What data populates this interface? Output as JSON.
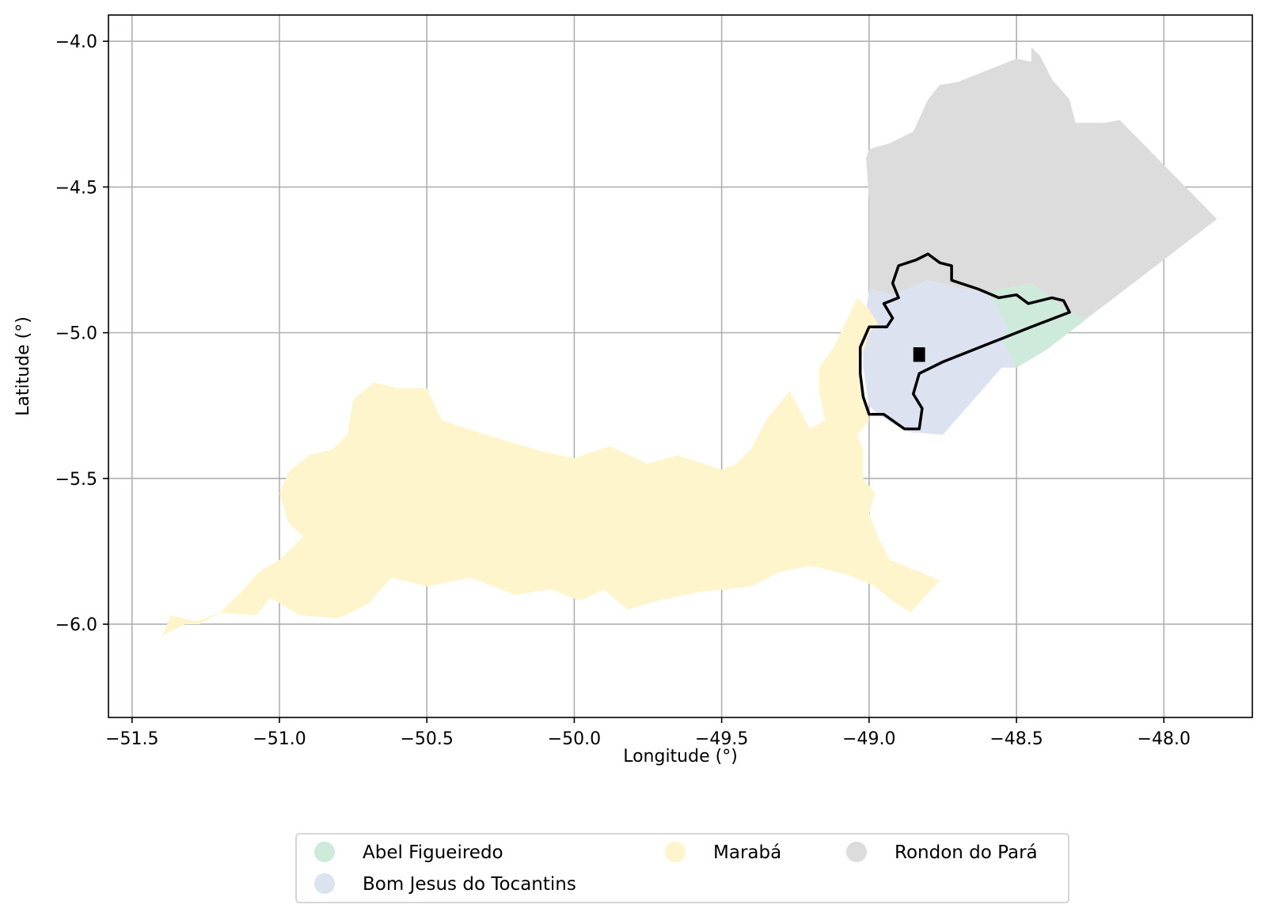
{
  "chart_data": {
    "type": "map",
    "xlabel": "Longitude (°)",
    "ylabel": "Latitude (°)",
    "xlim": [
      -51.58,
      -47.7
    ],
    "ylim": [
      -6.32,
      -3.91
    ],
    "xticks": [
      -51.5,
      -51.0,
      -50.5,
      -50.0,
      -49.5,
      -49.0,
      -48.5,
      -48.0
    ],
    "yticks": [
      -4.0,
      -4.5,
      -5.0,
      -5.5,
      -6.0
    ],
    "xtick_labels": [
      "−51.5",
      "−51.0",
      "−50.5",
      "−50.0",
      "−49.5",
      "−49.0",
      "−48.5",
      "−48.0"
    ],
    "ytick_labels": [
      "−4.0",
      "−4.5",
      "−5.0",
      "−5.5",
      "−6.0"
    ],
    "grid": true,
    "legend_position": "bottom-center",
    "regions": [
      {
        "name": "Abel Figueiredo",
        "color": "#cdeadb",
        "polygon": [
          [
            -48.6,
            -4.86
          ],
          [
            -48.45,
            -4.83
          ],
          [
            -48.33,
            -4.92
          ],
          [
            -48.27,
            -4.95
          ],
          [
            -48.22,
            -4.92
          ],
          [
            -48.4,
            -5.06
          ],
          [
            -48.5,
            -5.12
          ],
          [
            -48.55,
            -5.02
          ],
          [
            -48.53,
            -4.98
          ]
        ]
      },
      {
        "name": "Bom Jesus do Tocantins",
        "color": "#dde2f0",
        "polygon": [
          [
            -49.0,
            -4.85
          ],
          [
            -48.92,
            -4.87
          ],
          [
            -48.8,
            -4.82
          ],
          [
            -48.68,
            -4.85
          ],
          [
            -48.6,
            -4.86
          ],
          [
            -48.53,
            -4.98
          ],
          [
            -48.55,
            -5.02
          ],
          [
            -48.5,
            -5.12
          ],
          [
            -48.55,
            -5.12
          ],
          [
            -48.75,
            -5.35
          ],
          [
            -48.87,
            -5.34
          ],
          [
            -48.97,
            -5.28
          ],
          [
            -49.0,
            -5.25
          ],
          [
            -49.02,
            -5.12
          ],
          [
            -49.02,
            -5.0
          ]
        ]
      },
      {
        "name": "Marabá",
        "color": "#fff5cc",
        "polygon": [
          [
            -51.4,
            -6.05
          ],
          [
            -51.37,
            -5.97
          ],
          [
            -51.28,
            -5.99
          ],
          [
            -51.2,
            -5.96
          ],
          [
            -51.08,
            -5.97
          ],
          [
            -51.03,
            -5.91
          ],
          [
            -50.93,
            -5.97
          ],
          [
            -50.8,
            -5.98
          ],
          [
            -50.7,
            -5.93
          ],
          [
            -50.62,
            -5.84
          ],
          [
            -50.5,
            -5.87
          ],
          [
            -50.35,
            -5.84
          ],
          [
            -50.2,
            -5.9
          ],
          [
            -50.08,
            -5.88
          ],
          [
            -49.98,
            -5.92
          ],
          [
            -49.9,
            -5.88
          ],
          [
            -49.82,
            -5.95
          ],
          [
            -49.72,
            -5.92
          ],
          [
            -49.58,
            -5.89
          ],
          [
            -49.48,
            -5.88
          ],
          [
            -49.4,
            -5.87
          ],
          [
            -49.3,
            -5.82
          ],
          [
            -49.2,
            -5.8
          ],
          [
            -49.07,
            -5.83
          ],
          [
            -48.98,
            -5.87
          ],
          [
            -48.92,
            -5.92
          ],
          [
            -48.86,
            -5.96
          ],
          [
            -48.76,
            -5.85
          ],
          [
            -48.83,
            -5.82
          ],
          [
            -48.93,
            -5.78
          ],
          [
            -48.97,
            -5.7
          ],
          [
            -49.0,
            -5.62
          ],
          [
            -48.98,
            -5.55
          ],
          [
            -49.02,
            -5.5
          ],
          [
            -49.02,
            -5.4
          ],
          [
            -49.04,
            -5.35
          ],
          [
            -49.0,
            -5.3
          ],
          [
            -49.02,
            -5.2
          ],
          [
            -49.03,
            -5.1
          ],
          [
            -49.0,
            -5.0
          ],
          [
            -48.97,
            -4.97
          ],
          [
            -49.0,
            -4.92
          ],
          [
            -49.04,
            -4.88
          ],
          [
            -49.12,
            -5.05
          ],
          [
            -49.17,
            -5.12
          ],
          [
            -49.17,
            -5.2
          ],
          [
            -49.15,
            -5.3
          ],
          [
            -49.2,
            -5.33
          ],
          [
            -49.27,
            -5.2
          ],
          [
            -49.35,
            -5.3
          ],
          [
            -49.4,
            -5.4
          ],
          [
            -49.45,
            -5.45
          ],
          [
            -49.5,
            -5.47
          ],
          [
            -49.65,
            -5.42
          ],
          [
            -49.75,
            -5.45
          ],
          [
            -49.88,
            -5.39
          ],
          [
            -50.0,
            -5.43
          ],
          [
            -50.1,
            -5.41
          ],
          [
            -50.2,
            -5.38
          ],
          [
            -50.3,
            -5.35
          ],
          [
            -50.45,
            -5.3
          ],
          [
            -50.5,
            -5.19
          ],
          [
            -50.6,
            -5.19
          ],
          [
            -50.68,
            -5.17
          ],
          [
            -50.75,
            -5.23
          ],
          [
            -50.77,
            -5.35
          ],
          [
            -50.82,
            -5.4
          ],
          [
            -50.9,
            -5.42
          ],
          [
            -50.97,
            -5.48
          ],
          [
            -51.0,
            -5.55
          ],
          [
            -50.97,
            -5.65
          ],
          [
            -50.92,
            -5.7
          ],
          [
            -51.0,
            -5.78
          ],
          [
            -51.07,
            -5.82
          ],
          [
            -51.12,
            -5.88
          ],
          [
            -51.2,
            -5.96
          ],
          [
            -51.27,
            -6.0
          ],
          [
            -51.32,
            -6.0
          ],
          [
            -51.4,
            -6.04
          ]
        ]
      },
      {
        "name": "Rondon do Pará",
        "color": "#dcdcdc",
        "polygon": [
          [
            -49.0,
            -4.37
          ],
          [
            -48.93,
            -4.35
          ],
          [
            -48.85,
            -4.31
          ],
          [
            -48.8,
            -4.2
          ],
          [
            -48.76,
            -4.15
          ],
          [
            -48.7,
            -4.14
          ],
          [
            -48.6,
            -4.1
          ],
          [
            -48.5,
            -4.06
          ],
          [
            -48.45,
            -4.07
          ],
          [
            -48.45,
            -4.02
          ],
          [
            -48.42,
            -4.05
          ],
          [
            -48.38,
            -4.13
          ],
          [
            -48.32,
            -4.2
          ],
          [
            -48.3,
            -4.28
          ],
          [
            -48.2,
            -4.28
          ],
          [
            -48.15,
            -4.27
          ],
          [
            -47.82,
            -4.61
          ],
          [
            -48.22,
            -4.92
          ],
          [
            -48.27,
            -4.95
          ],
          [
            -48.33,
            -4.92
          ],
          [
            -48.45,
            -4.83
          ],
          [
            -48.6,
            -4.86
          ],
          [
            -48.68,
            -4.85
          ],
          [
            -48.8,
            -4.82
          ],
          [
            -48.92,
            -4.87
          ],
          [
            -49.0,
            -4.85
          ],
          [
            -49.0,
            -4.55
          ],
          [
            -49.01,
            -4.4
          ]
        ]
      }
    ],
    "outline": [
      [
        -49.03,
        -5.05
      ],
      [
        -49.0,
        -4.98
      ],
      [
        -48.94,
        -4.98
      ],
      [
        -48.92,
        -4.95
      ],
      [
        -48.95,
        -4.9
      ],
      [
        -48.9,
        -4.88
      ],
      [
        -48.92,
        -4.83
      ],
      [
        -48.9,
        -4.77
      ],
      [
        -48.84,
        -4.75
      ],
      [
        -48.8,
        -4.73
      ],
      [
        -48.76,
        -4.76
      ],
      [
        -48.72,
        -4.77
      ],
      [
        -48.72,
        -4.82
      ],
      [
        -48.63,
        -4.85
      ],
      [
        -48.56,
        -4.88
      ],
      [
        -48.5,
        -4.87
      ],
      [
        -48.46,
        -4.9
      ],
      [
        -48.38,
        -4.88
      ],
      [
        -48.34,
        -4.89
      ],
      [
        -48.32,
        -4.93
      ],
      [
        -48.45,
        -4.98
      ],
      [
        -48.6,
        -5.04
      ],
      [
        -48.75,
        -5.1
      ],
      [
        -48.83,
        -5.14
      ],
      [
        -48.85,
        -5.21
      ],
      [
        -48.82,
        -5.26
      ],
      [
        -48.83,
        -5.33
      ],
      [
        -48.88,
        -5.33
      ],
      [
        -48.95,
        -5.28
      ],
      [
        -49.0,
        -5.28
      ],
      [
        -49.02,
        -5.22
      ],
      [
        -49.03,
        -5.14
      ]
    ],
    "legend": [
      {
        "label": "Abel Figueiredo",
        "color": "#cdeadb"
      },
      {
        "label": "Bom Jesus do Tocantins",
        "color": "#dde2f0"
      },
      {
        "label": "Marabá",
        "color": "#fff5cc"
      },
      {
        "label": "Rondon do Pará",
        "color": "#dcdcdc"
      }
    ]
  }
}
